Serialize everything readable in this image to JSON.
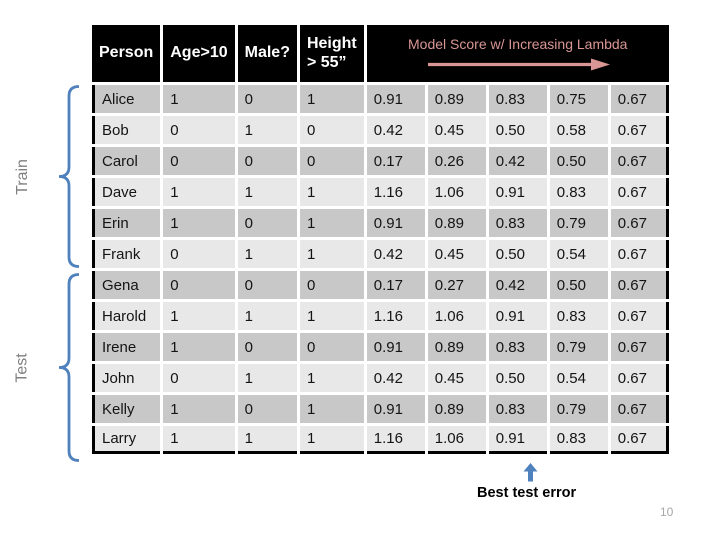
{
  "page": {
    "page_number": "10",
    "train_label": "Train",
    "test_label": "Test",
    "best_test_error_label": "Best test error"
  },
  "table": {
    "headers": [
      "Person",
      "Age>10",
      "Male?",
      "Height > 55”"
    ],
    "score_header": "Model Score w/ Increasing Lambda",
    "rows": [
      [
        "Alice",
        "1",
        "0",
        "1",
        "0.91",
        "0.89",
        "0.83",
        "0.75",
        "0.67"
      ],
      [
        "Bob",
        "0",
        "1",
        "0",
        "0.42",
        "0.45",
        "0.50",
        "0.58",
        "0.67"
      ],
      [
        "Carol",
        "0",
        "0",
        "0",
        "0.17",
        "0.26",
        "0.42",
        "0.50",
        "0.67"
      ],
      [
        "Dave",
        "1",
        "1",
        "1",
        "1.16",
        "1.06",
        "0.91",
        "0.83",
        "0.67"
      ],
      [
        "Erin",
        "1",
        "0",
        "1",
        "0.91",
        "0.89",
        "0.83",
        "0.79",
        "0.67"
      ],
      [
        "Frank",
        "0",
        "1",
        "1",
        "0.42",
        "0.45",
        "0.50",
        "0.54",
        "0.67"
      ],
      [
        "Gena",
        "0",
        "0",
        "0",
        "0.17",
        "0.27",
        "0.42",
        "0.50",
        "0.67"
      ],
      [
        "Harold",
        "1",
        "1",
        "1",
        "1.16",
        "1.06",
        "0.91",
        "0.83",
        "0.67"
      ],
      [
        "Irene",
        "1",
        "0",
        "0",
        "0.91",
        "0.89",
        "0.83",
        "0.79",
        "0.67"
      ],
      [
        "John",
        "0",
        "1",
        "1",
        "0.42",
        "0.45",
        "0.50",
        "0.54",
        "0.67"
      ],
      [
        "Kelly",
        "1",
        "0",
        "1",
        "0.91",
        "0.89",
        "0.83",
        "0.79",
        "0.67"
      ],
      [
        "Larry",
        "1",
        "1",
        "1",
        "1.16",
        "1.06",
        "0.91",
        "0.83",
        "0.67"
      ]
    ]
  },
  "colors": {
    "header_bg": "#000000",
    "header_text": "#ffffff",
    "accent_pink": "#d99694",
    "accent_blue": "#4f81bd",
    "row_dark": "#c8c8c8",
    "row_light": "#e8e8e8",
    "side_label_gray": "#7f7f7f",
    "page_number_gray": "#a6a6a6"
  }
}
